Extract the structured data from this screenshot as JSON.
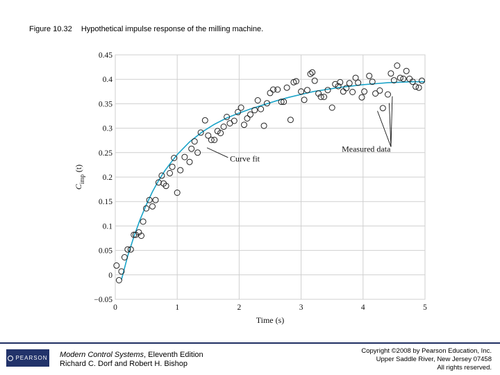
{
  "caption": {
    "figure_number": "Figure 10.32",
    "text": "Hypothetical impulse response of the milling machine."
  },
  "chart_data": {
    "type": "scatter",
    "title": "Hypothetical impulse response of the milling machine.",
    "xlabel": "Time (s)",
    "ylabel": "C_imp (t)",
    "ylabel_main": "C",
    "ylabel_sub": "imp",
    "ylabel_arg": "(t)",
    "xlim": [
      0,
      5
    ],
    "ylim": [
      -0.05,
      0.45
    ],
    "xticks": [
      "0",
      "1",
      "2",
      "3",
      "4",
      "5"
    ],
    "yticks": [
      "−0.05",
      "0",
      "0.05",
      "0.1",
      "0.15",
      "0.2",
      "0.25",
      "0.3",
      "0.35",
      "0.4",
      "0.45"
    ],
    "grid": true,
    "annotations": [
      "Curve fit",
      "Measured data"
    ],
    "series": [
      {
        "name": "Curve fit",
        "type": "line",
        "color": "#1aa3c8",
        "curve_model": "0.395*(1-exp(-(t-0.12)/0.82))",
        "x": [
          0.1,
          0.2,
          0.3,
          0.4,
          0.5,
          0.6,
          0.7,
          0.8,
          0.9,
          1.0,
          1.2,
          1.4,
          1.6,
          1.8,
          2.0,
          2.2,
          2.4,
          2.6,
          2.8,
          3.0,
          3.2,
          3.4,
          3.6,
          3.8,
          4.0,
          4.2,
          4.4,
          4.6,
          4.8,
          5.0
        ],
        "y": [
          -0.01,
          0.038,
          0.078,
          0.113,
          0.143,
          0.17,
          0.193,
          0.213,
          0.23,
          0.246,
          0.272,
          0.292,
          0.308,
          0.321,
          0.331,
          0.34,
          0.348,
          0.356,
          0.363,
          0.369,
          0.375,
          0.379,
          0.383,
          0.386,
          0.389,
          0.391,
          0.393,
          0.394,
          0.395,
          0.395
        ]
      },
      {
        "name": "Measured data",
        "type": "scatter",
        "color": "#222222",
        "x": [
          0.02,
          0.06,
          0.1,
          0.15,
          0.2,
          0.25,
          0.3,
          0.33,
          0.38,
          0.42,
          0.45,
          0.5,
          0.55,
          0.6,
          0.65,
          0.7,
          0.75,
          0.78,
          0.82,
          0.88,
          0.92,
          0.95,
          1.0,
          1.05,
          1.12,
          1.2,
          1.23,
          1.28,
          1.33,
          1.38,
          1.45,
          1.5,
          1.55,
          1.6,
          1.65,
          1.7,
          1.75,
          1.8,
          1.85,
          1.92,
          1.98,
          2.03,
          2.08,
          2.13,
          2.18,
          2.25,
          2.3,
          2.35,
          2.4,
          2.45,
          2.5,
          2.55,
          2.62,
          2.68,
          2.72,
          2.77,
          2.83,
          2.88,
          2.92,
          3.0,
          3.05,
          3.1,
          3.15,
          3.18,
          3.22,
          3.28,
          3.32,
          3.37,
          3.43,
          3.5,
          3.55,
          3.6,
          3.63,
          3.68,
          3.73,
          3.78,
          3.83,
          3.88,
          3.92,
          3.98,
          4.02,
          4.1,
          4.15,
          4.2,
          4.27,
          4.32,
          4.4,
          4.45,
          4.5,
          4.55,
          4.6,
          4.65,
          4.7,
          4.75,
          4.8,
          4.85,
          4.9,
          4.95
        ],
        "y": [
          0.019,
          -0.011,
          0.007,
          0.036,
          0.052,
          0.052,
          0.082,
          0.082,
          0.087,
          0.08,
          0.109,
          0.136,
          0.153,
          0.14,
          0.153,
          0.189,
          0.203,
          0.187,
          0.182,
          0.208,
          0.221,
          0.239,
          0.168,
          0.214,
          0.241,
          0.231,
          0.258,
          0.273,
          0.25,
          0.291,
          0.316,
          0.285,
          0.276,
          0.276,
          0.294,
          0.29,
          0.303,
          0.323,
          0.31,
          0.315,
          0.333,
          0.342,
          0.307,
          0.32,
          0.328,
          0.337,
          0.357,
          0.339,
          0.305,
          0.351,
          0.372,
          0.379,
          0.379,
          0.354,
          0.354,
          0.383,
          0.317,
          0.394,
          0.396,
          0.375,
          0.358,
          0.378,
          0.411,
          0.414,
          0.397,
          0.371,
          0.364,
          0.364,
          0.378,
          0.342,
          0.39,
          0.386,
          0.394,
          0.375,
          0.382,
          0.392,
          0.374,
          0.403,
          0.393,
          0.363,
          0.375,
          0.407,
          0.395,
          0.371,
          0.377,
          0.341,
          0.369,
          0.412,
          0.398,
          0.428,
          0.403,
          0.401,
          0.417,
          0.401,
          0.395,
          0.385,
          0.383,
          0.397
        ]
      }
    ]
  },
  "footer": {
    "logo_text": "PEARSON",
    "book_title": "Modern Control Systems",
    "edition": ", Eleventh Edition",
    "authors": "Richard C. Dorf and Robert H. Bishop",
    "copyright_line1": "Copyright ©2008 by Pearson Education, Inc.",
    "copyright_line2": "Upper Saddle River, New Jersey 07458",
    "copyright_line3": "All rights reserved."
  }
}
